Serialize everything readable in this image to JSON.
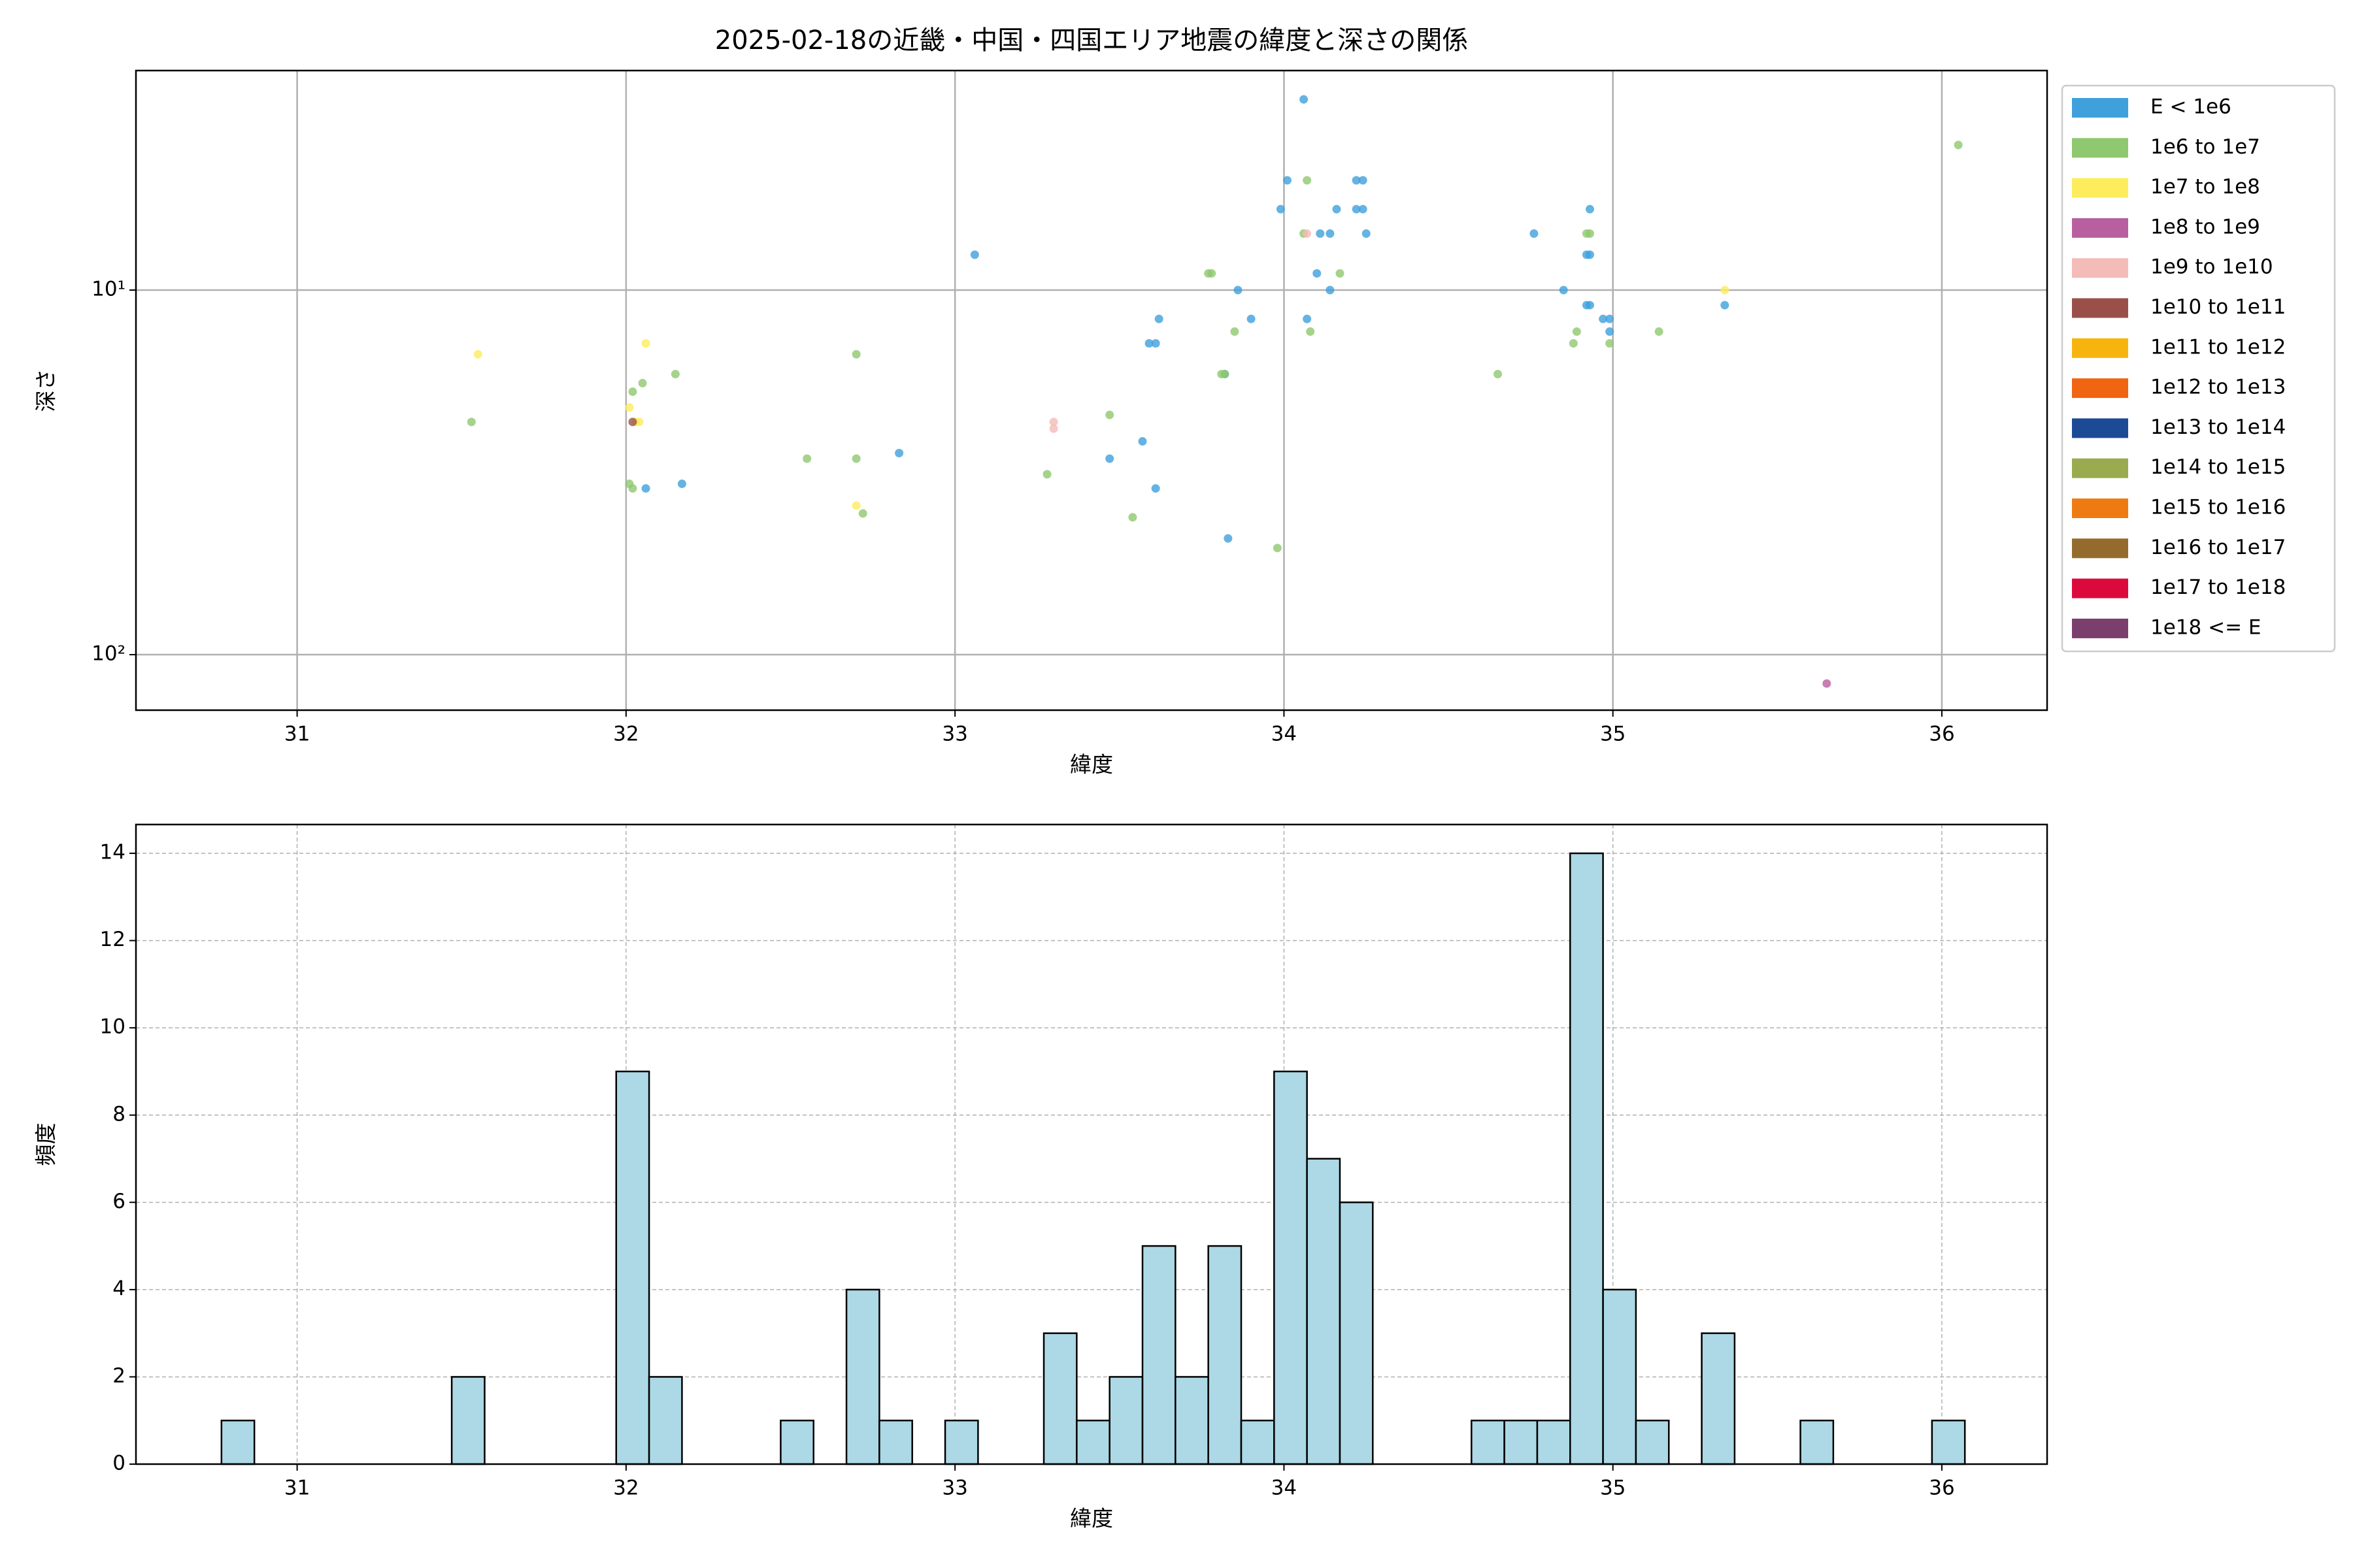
{
  "chart_data": [
    {
      "type": "scatter",
      "title": "2025-02-18の近畿・中国・四国エリア地震の緯度と深さの関係",
      "x_label": "緯度",
      "y_label": "深さ",
      "xlim": [
        30.51,
        36.32
      ],
      "xticks": [
        31,
        32,
        33,
        34,
        35,
        36
      ],
      "ylim": [
        2.5,
        142
      ],
      "yscale": "log",
      "y_inverted": true,
      "yticks": [
        {
          "value": 10,
          "label": "10¹"
        },
        {
          "value": 100,
          "label": "10²"
        }
      ],
      "grid": true,
      "grid_style": "solid",
      "legend": "outside right",
      "series": [
        {
          "name": "E < 1e6",
          "color": "#3fa0dc",
          "x": [
            34.06,
            34.01,
            34.22,
            34.24,
            33.99,
            34.16,
            34.22,
            34.24,
            34.93,
            34.11,
            34.14,
            34.25,
            34.76,
            33.06,
            34.92,
            34.93,
            34.1,
            34.14,
            33.86,
            34.85,
            34.92,
            34.93,
            35.34,
            33.62,
            33.9,
            34.07,
            34.97,
            34.99,
            34.99,
            33.59,
            33.61,
            33.82,
            33.57,
            32.83,
            33.47,
            32.17,
            32.06,
            33.61,
            33.83
          ],
          "values": [
            3.0,
            5.0,
            5.0,
            5.0,
            6.0,
            6.0,
            6.0,
            6.0,
            6.0,
            7.0,
            7.0,
            7.0,
            7.0,
            8.0,
            8.0,
            8.0,
            9.0,
            10,
            10,
            10,
            11,
            11,
            11,
            12,
            12,
            12,
            12,
            12,
            13,
            14,
            14,
            17,
            26,
            28,
            29,
            34,
            35,
            35,
            48
          ]
        },
        {
          "name": "1e6 to 1e7",
          "color": "#8fc86e",
          "x": [
            36.05,
            34.07,
            34.06,
            34.92,
            34.93,
            33.77,
            33.78,
            34.17,
            34.08,
            33.85,
            34.89,
            35.14,
            34.88,
            34.99,
            32.7,
            32.05,
            32.15,
            32.02,
            33.81,
            33.82,
            34.65,
            31.53,
            33.47,
            32.55,
            32.7,
            33.28,
            32.01,
            32.02,
            32.72,
            33.54,
            33.98
          ],
          "values": [
            4.0,
            5.0,
            7.0,
            7.0,
            7.0,
            9.0,
            9.0,
            9.0,
            13,
            13,
            13,
            13,
            14,
            14,
            15,
            18,
            17,
            19,
            17,
            17,
            17,
            23,
            22,
            29,
            29,
            32,
            34,
            35,
            41,
            42,
            51
          ]
        },
        {
          "name": "1e7 to 1e8",
          "color": "#fdec5c",
          "x": [
            31.55,
            32.06,
            32.01,
            32.03,
            32.04,
            32.7,
            35.34
          ],
          "values": [
            15,
            14,
            21,
            23,
            23,
            39,
            10
          ]
        },
        {
          "name": "1e8 to 1e9",
          "color": "#b8609f",
          "x": [
            35.65
          ],
          "values": [
            120
          ]
        },
        {
          "name": "1e9 to 1e10",
          "color": "#f4bcb8",
          "x": [
            33.3,
            33.3,
            34.07
          ],
          "values": [
            23,
            24,
            7.0
          ]
        },
        {
          "name": "1e10 to 1e11",
          "color": "#9a5049",
          "x": [
            32.02
          ],
          "values": [
            23
          ]
        },
        {
          "name": "1e11 to 1e12",
          "color": "#f8b40e",
          "x": [],
          "values": []
        },
        {
          "name": "1e12 to 1e13",
          "color": "#ef6511",
          "x": [],
          "values": []
        },
        {
          "name": "1e13 to 1e14",
          "color": "#1d4a94",
          "x": [],
          "values": []
        },
        {
          "name": "1e14 to 1e15",
          "color": "#9aaa4e",
          "x": [],
          "values": []
        },
        {
          "name": "1e15 to 1e16",
          "color": "#ee7b12",
          "x": [],
          "values": []
        },
        {
          "name": "1e16 to 1e17",
          "color": "#946b2c",
          "x": [],
          "values": []
        },
        {
          "name": "1e17 to 1e18",
          "color": "#dc0a3c",
          "x": [],
          "values": []
        },
        {
          "name": "1e18 <= E",
          "color": "#7a3f6c",
          "x": [],
          "values": []
        }
      ]
    },
    {
      "type": "histogram",
      "x_label": "緯度",
      "y_label": "頻度",
      "color": "#add8e6",
      "edge_color": "#000000",
      "xlim": [
        30.51,
        36.32
      ],
      "xticks": [
        31,
        32,
        33,
        34,
        35,
        36
      ],
      "ylim": [
        0,
        14.66
      ],
      "yticks": [
        0,
        2,
        4,
        6,
        8,
        10,
        12,
        14
      ],
      "grid": true,
      "grid_style": "dashed",
      "bins": [
        30.77,
        30.87,
        30.97,
        31.07,
        31.17,
        31.27,
        31.37,
        31.47,
        31.57,
        31.67,
        31.77,
        31.87,
        31.97,
        32.07,
        32.17,
        32.27,
        32.37,
        32.47,
        32.57,
        32.67,
        32.77,
        32.87,
        32.97,
        33.07,
        33.17,
        33.27,
        33.37,
        33.47,
        33.57,
        33.67,
        33.77,
        33.87,
        33.97,
        34.07,
        34.17,
        34.27,
        34.37,
        34.47,
        34.57,
        34.67,
        34.77,
        34.87,
        34.97,
        35.07,
        35.17,
        35.27,
        35.37,
        35.47,
        35.57,
        35.67,
        35.77,
        35.87,
        35.97,
        36.07
      ],
      "counts": [
        1,
        0,
        0,
        0,
        0,
        0,
        0,
        2,
        0,
        0,
        0,
        0,
        9,
        2,
        0,
        0,
        0,
        1,
        0,
        4,
        1,
        0,
        1,
        0,
        0,
        3,
        1,
        2,
        5,
        2,
        5,
        1,
        9,
        7,
        6,
        0,
        0,
        0,
        1,
        1,
        1,
        14,
        4,
        1,
        0,
        3,
        0,
        0,
        1,
        0,
        0,
        0,
        1
      ]
    }
  ]
}
